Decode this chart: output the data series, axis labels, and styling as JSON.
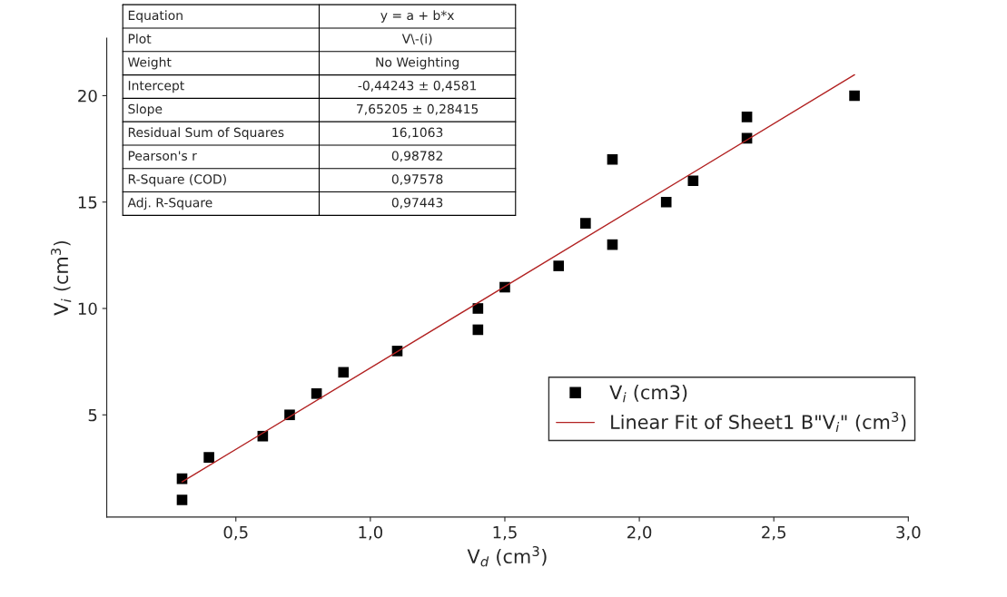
{
  "chart_data": {
    "type": "scatter",
    "xlabel": "V$_{d}$ (cm$^{3}$)",
    "ylabel": "V$_{i}$ (cm$^{3}$)",
    "series": [
      {
        "name": "V$_{i}$ (cm3)",
        "color": "#000000",
        "marker": "square",
        "x": [
          0.3,
          0.3,
          0.4,
          0.6,
          0.7,
          0.8,
          0.9,
          1.1,
          1.4,
          1.4,
          1.5,
          1.7,
          1.8,
          1.9,
          1.9,
          2.1,
          2.2,
          2.4,
          2.4,
          2.8
        ],
        "values": [
          1,
          2,
          3,
          4,
          5,
          6,
          7,
          8,
          9,
          10,
          11,
          12,
          14,
          13,
          17,
          15,
          16,
          18,
          19,
          20
        ]
      },
      {
        "type": "line",
        "name": "Linear Fit of Sheet1 B\"V$_{i}$\" (cm$^{3}$)",
        "color": "#b22222",
        "line_style": "solid",
        "x": [
          0.3,
          2.8
        ],
        "values": [
          1.85,
          20.98
        ]
      }
    ],
    "xlim": [
      0.02,
      3.0
    ],
    "ylim": [
      0.2,
      22.7
    ],
    "xticks": [
      {
        "value": 0.5,
        "label": "0,5"
      },
      {
        "value": 1.0,
        "label": "1,0"
      },
      {
        "value": 1.5,
        "label": "1,5"
      },
      {
        "value": 2.0,
        "label": "2,0"
      },
      {
        "value": 2.5,
        "label": "2,5"
      },
      {
        "value": 3.0,
        "label": "3,0"
      }
    ],
    "yticks": [
      5,
      10,
      15,
      20
    ],
    "grid": false,
    "legend": "bottom right",
    "annotations": [
      "Equation",
      "y = a + b*x",
      "Plot",
      "V\\-(i)",
      "Weight",
      "No Weighting",
      "Intercept",
      "-0,44243 ± 0,4581",
      "Slope",
      "7,65205 ± 0,28415",
      "Residual Sum of Squares",
      "16,1063",
      "Pearson's r",
      "0,98782",
      "R-Square (COD)",
      "0,97578",
      "Adj. R-Square",
      "0,97443"
    ]
  }
}
